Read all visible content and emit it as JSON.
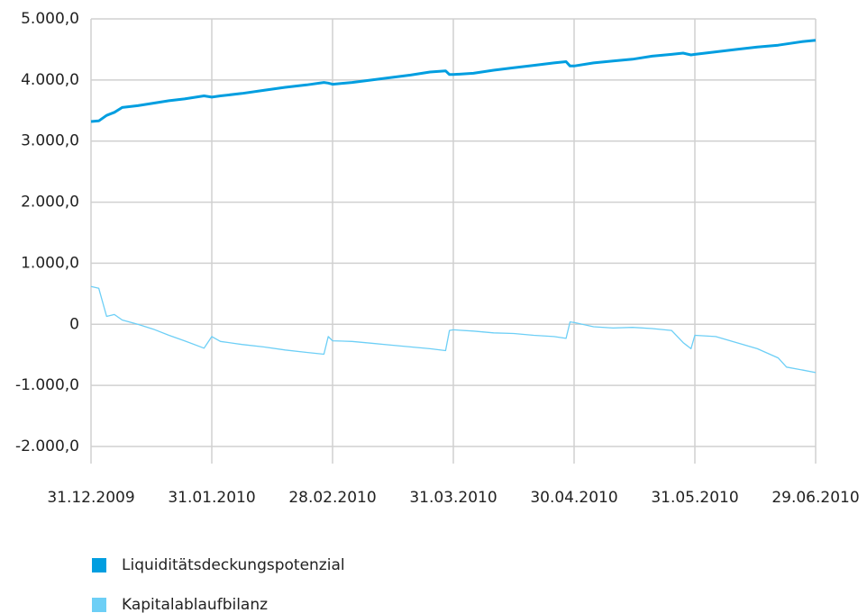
{
  "chart_data": {
    "type": "line",
    "x": [
      "31.12.2009",
      "02.01.2010",
      "04.01.2010",
      "06.01.2010",
      "08.01.2010",
      "12.01.2010",
      "16.01.2010",
      "20.01.2010",
      "24.01.2010",
      "29.01.2010",
      "31.01.2010",
      "02.02.2010",
      "07.02.2010",
      "12.02.2010",
      "17.02.2010",
      "22.02.2010",
      "26.02.2010",
      "27.02.2010",
      "28.02.2010",
      "05.03.2010",
      "10.03.2010",
      "15.03.2010",
      "20.03.2010",
      "25.03.2010",
      "29.03.2010",
      "30.03.2010",
      "31.03.2010",
      "05.04.2010",
      "10.04.2010",
      "15.04.2010",
      "20.04.2010",
      "25.04.2010",
      "28.04.2010",
      "29.04.2010",
      "30.04.2010",
      "05.05.2010",
      "10.05.2010",
      "15.05.2010",
      "20.05.2010",
      "25.05.2010",
      "28.05.2010",
      "30.05.2010",
      "31.05.2010",
      "05.06.2010",
      "10.06.2010",
      "15.06.2010",
      "20.06.2010",
      "22.06.2010",
      "26.06.2010",
      "29.06.2010"
    ],
    "series": [
      {
        "name": "Liquiditätsdeckungspotenzial",
        "color": "#009ee0",
        "values": [
          3320,
          3330,
          3420,
          3470,
          3550,
          3580,
          3620,
          3660,
          3690,
          3740,
          3720,
          3740,
          3780,
          3830,
          3880,
          3920,
          3960,
          3950,
          3930,
          3960,
          4000,
          4040,
          4080,
          4130,
          4150,
          4090,
          4090,
          4110,
          4160,
          4200,
          4240,
          4280,
          4300,
          4230,
          4230,
          4280,
          4310,
          4340,
          4390,
          4420,
          4440,
          4410,
          4420,
          4460,
          4500,
          4540,
          4570,
          4590,
          4630,
          4650
        ]
      },
      {
        "name": "Kapitalablaufbilanz",
        "color": "#6dcff6",
        "values": [
          620,
          590,
          130,
          160,
          70,
          0,
          -80,
          -180,
          -270,
          -390,
          -200,
          -280,
          -330,
          -370,
          -420,
          -460,
          -490,
          -200,
          -270,
          -280,
          -310,
          -340,
          -370,
          -400,
          -430,
          -100,
          -90,
          -110,
          -140,
          -150,
          -180,
          -200,
          -230,
          40,
          30,
          -40,
          -60,
          -50,
          -70,
          -100,
          -300,
          -400,
          -180,
          -200,
          -300,
          -400,
          -550,
          -700,
          -750,
          -790
        ]
      }
    ],
    "xticks": [
      "31.12.2009",
      "31.01.2010",
      "28.02.2010",
      "31.03.2010",
      "30.04.2010",
      "31.05.2010",
      "29.06.2010"
    ],
    "ylim": [
      -2000,
      5000
    ],
    "yticks": [
      {
        "value": -2000,
        "label": "-2.000,0"
      },
      {
        "value": -1000,
        "label": "-1.000,0"
      },
      0,
      {
        "value": 1000,
        "label": "1.000,0"
      },
      {
        "value": 2000,
        "label": "2.000,0"
      },
      {
        "value": 3000,
        "label": "3.000,0"
      },
      {
        "value": 4000,
        "label": "4.000,0"
      },
      {
        "value": 5000,
        "label": "5.000,0"
      }
    ],
    "grid": true
  }
}
